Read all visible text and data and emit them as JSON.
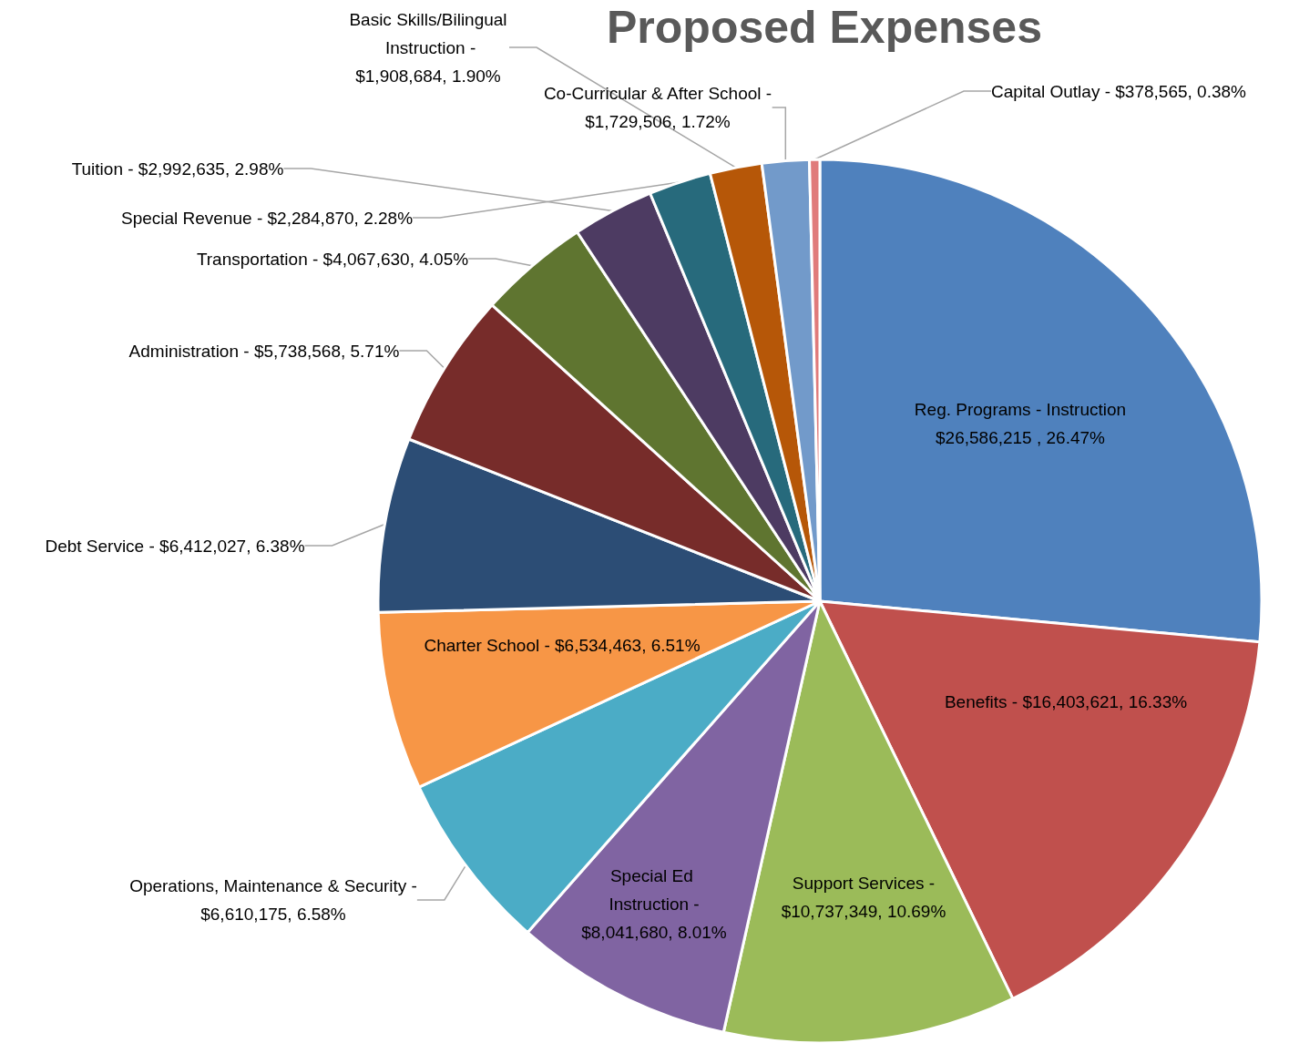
{
  "chart_data": {
    "type": "pie",
    "title": "Proposed Expenses",
    "categories": [
      "Reg. Programs - Instruction",
      "Benefits -",
      "Support Services -",
      "Special Ed Instruction -",
      "Operations, Maintenance & Security -",
      "Charter School -",
      "Debt Service -",
      "Administration -",
      "Transportation -",
      "Tuition -",
      "Special Revenue -",
      "Basic Skills/Bilingual Instruction -",
      "Co-Curricular & After School -",
      "Capital Outlay -"
    ],
    "values": [
      26586215,
      16403621,
      10737349,
      8041680,
      6610175,
      6534463,
      6412027,
      5738568,
      4067630,
      2992635,
      2284870,
      1908684,
      1729506,
      378565
    ],
    "value_labels": [
      "$26,586,215 , 26.47%",
      "$16,403,621, 16.33%",
      "$10,737,349, 10.69%",
      "$8,041,680, 8.01%",
      "$6,610,175, 6.58%",
      "$6,534,463, 6.51%",
      "$6,412,027, 6.38%",
      "$5,738,568, 5.71%",
      "$4,067,630, 4.05%",
      "$2,992,635, 2.98%",
      "$2,284,870, 2.28%",
      "$1,908,684, 1.90%",
      "$1,729,506, 1.72%",
      "$378,565, 0.38%"
    ],
    "colors": [
      "#4f81bd",
      "#c0504d",
      "#9bbb59",
      "#8064a2",
      "#4bacc6",
      "#f79646",
      "#2c4d75",
      "#772c2a",
      "#5f7530",
      "#4d3b62",
      "#276a7c",
      "#b65708",
      "#729aca",
      "#e07b7b"
    ],
    "legend": false
  }
}
